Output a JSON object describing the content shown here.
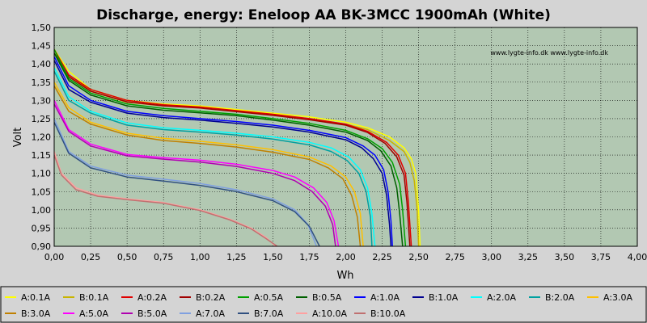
{
  "chart_data": {
    "type": "line",
    "title": "Discharge, energy: Eneloop AA BK-3MCC 1900mAh (White)",
    "xlabel": "Wh",
    "ylabel": "Volt",
    "xlim": [
      0,
      4
    ],
    "ylim": [
      0.9,
      1.5
    ],
    "xticks": [
      "0,00",
      "0,25",
      "0,50",
      "0,75",
      "1,00",
      "1,25",
      "1,50",
      "1,75",
      "2,00",
      "2,25",
      "2,50",
      "2,75",
      "3,00",
      "3,25",
      "3,50",
      "3,75",
      "4,00"
    ],
    "yticks": [
      "0,90",
      "0,95",
      "1,00",
      "1,05",
      "1,10",
      "1,15",
      "1,20",
      "1,25",
      "1,30",
      "1,35",
      "1,40",
      "1,45",
      "1,50"
    ],
    "grid": true,
    "legend_position": "bottom",
    "watermark": "www.lygte-info.dk www.lygte-info.dk",
    "background_color": "#b2c8b2",
    "series": [
      {
        "name": "A:0.1A",
        "color": "#ffff00",
        "points": [
          [
            0,
            1.44
          ],
          [
            0.1,
            1.38
          ],
          [
            0.25,
            1.33
          ],
          [
            0.5,
            1.3
          ],
          [
            0.75,
            1.29
          ],
          [
            1,
            1.285
          ],
          [
            1.25,
            1.275
          ],
          [
            1.5,
            1.265
          ],
          [
            1.75,
            1.255
          ],
          [
            2,
            1.24
          ],
          [
            2.15,
            1.225
          ],
          [
            2.3,
            1.2
          ],
          [
            2.4,
            1.17
          ],
          [
            2.45,
            1.14
          ],
          [
            2.48,
            1.1
          ],
          [
            2.5,
            1.0
          ],
          [
            2.51,
            0.9
          ]
        ]
      },
      {
        "name": "B:0.1A",
        "color": "#c8b400",
        "points": [
          [
            0,
            1.43
          ],
          [
            0.1,
            1.37
          ],
          [
            0.25,
            1.325
          ],
          [
            0.5,
            1.295
          ],
          [
            0.75,
            1.285
          ],
          [
            1,
            1.28
          ],
          [
            1.25,
            1.27
          ],
          [
            1.5,
            1.26
          ],
          [
            1.75,
            1.25
          ],
          [
            2,
            1.235
          ],
          [
            2.15,
            1.22
          ],
          [
            2.3,
            1.19
          ],
          [
            2.4,
            1.16
          ],
          [
            2.44,
            1.13
          ],
          [
            2.47,
            1.08
          ],
          [
            2.49,
            1.0
          ],
          [
            2.5,
            0.9
          ]
        ]
      },
      {
        "name": "A:0.2A",
        "color": "#e00000",
        "points": [
          [
            0,
            1.44
          ],
          [
            0.1,
            1.37
          ],
          [
            0.25,
            1.33
          ],
          [
            0.5,
            1.3
          ],
          [
            0.75,
            1.288
          ],
          [
            1,
            1.282
          ],
          [
            1.25,
            1.272
          ],
          [
            1.5,
            1.262
          ],
          [
            1.75,
            1.25
          ],
          [
            2,
            1.235
          ],
          [
            2.15,
            1.215
          ],
          [
            2.28,
            1.185
          ],
          [
            2.36,
            1.15
          ],
          [
            2.41,
            1.1
          ],
          [
            2.43,
            1.02
          ],
          [
            2.45,
            0.9
          ]
        ]
      },
      {
        "name": "B:0.2A",
        "color": "#a00000",
        "points": [
          [
            0,
            1.43
          ],
          [
            0.1,
            1.365
          ],
          [
            0.25,
            1.325
          ],
          [
            0.5,
            1.296
          ],
          [
            0.75,
            1.285
          ],
          [
            1,
            1.279
          ],
          [
            1.25,
            1.269
          ],
          [
            1.5,
            1.259
          ],
          [
            1.75,
            1.247
          ],
          [
            2,
            1.232
          ],
          [
            2.15,
            1.212
          ],
          [
            2.27,
            1.182
          ],
          [
            2.35,
            1.145
          ],
          [
            2.4,
            1.095
          ],
          [
            2.42,
            1.02
          ],
          [
            2.44,
            0.9
          ]
        ]
      },
      {
        "name": "A:0.5A",
        "color": "#00a000",
        "points": [
          [
            0,
            1.44
          ],
          [
            0.1,
            1.36
          ],
          [
            0.25,
            1.32
          ],
          [
            0.5,
            1.29
          ],
          [
            0.75,
            1.278
          ],
          [
            1,
            1.27
          ],
          [
            1.25,
            1.262
          ],
          [
            1.5,
            1.25
          ],
          [
            1.75,
            1.237
          ],
          [
            2,
            1.218
          ],
          [
            2.15,
            1.195
          ],
          [
            2.25,
            1.168
          ],
          [
            2.32,
            1.13
          ],
          [
            2.37,
            1.07
          ],
          [
            2.39,
            1.0
          ],
          [
            2.41,
            0.9
          ]
        ]
      },
      {
        "name": "B:0.5A",
        "color": "#006000",
        "points": [
          [
            0,
            1.43
          ],
          [
            0.1,
            1.355
          ],
          [
            0.25,
            1.315
          ],
          [
            0.5,
            1.285
          ],
          [
            0.75,
            1.273
          ],
          [
            1,
            1.266
          ],
          [
            1.25,
            1.258
          ],
          [
            1.5,
            1.246
          ],
          [
            1.75,
            1.232
          ],
          [
            2,
            1.213
          ],
          [
            2.15,
            1.19
          ],
          [
            2.24,
            1.162
          ],
          [
            2.31,
            1.12
          ],
          [
            2.35,
            1.06
          ],
          [
            2.37,
            0.99
          ],
          [
            2.39,
            0.9
          ]
        ]
      },
      {
        "name": "A:1.0A",
        "color": "#0000ff",
        "points": [
          [
            0,
            1.42
          ],
          [
            0.1,
            1.34
          ],
          [
            0.25,
            1.3
          ],
          [
            0.5,
            1.27
          ],
          [
            0.75,
            1.258
          ],
          [
            1,
            1.25
          ],
          [
            1.25,
            1.242
          ],
          [
            1.5,
            1.232
          ],
          [
            1.75,
            1.218
          ],
          [
            2,
            1.198
          ],
          [
            2.12,
            1.175
          ],
          [
            2.2,
            1.15
          ],
          [
            2.26,
            1.11
          ],
          [
            2.29,
            1.05
          ],
          [
            2.31,
            0.97
          ],
          [
            2.32,
            0.9
          ]
        ]
      },
      {
        "name": "B:1.0A",
        "color": "#000090",
        "points": [
          [
            0,
            1.41
          ],
          [
            0.1,
            1.33
          ],
          [
            0.25,
            1.295
          ],
          [
            0.5,
            1.265
          ],
          [
            0.75,
            1.253
          ],
          [
            1,
            1.246
          ],
          [
            1.25,
            1.237
          ],
          [
            1.5,
            1.227
          ],
          [
            1.75,
            1.213
          ],
          [
            2,
            1.192
          ],
          [
            2.11,
            1.17
          ],
          [
            2.19,
            1.14
          ],
          [
            2.25,
            1.1
          ],
          [
            2.28,
            1.04
          ],
          [
            2.3,
            0.96
          ],
          [
            2.31,
            0.9
          ]
        ]
      },
      {
        "name": "A:2.0A",
        "color": "#00ffff",
        "points": [
          [
            0,
            1.39
          ],
          [
            0.1,
            1.31
          ],
          [
            0.25,
            1.27
          ],
          [
            0.5,
            1.238
          ],
          [
            0.75,
            1.225
          ],
          [
            1,
            1.218
          ],
          [
            1.25,
            1.21
          ],
          [
            1.5,
            1.2
          ],
          [
            1.75,
            1.185
          ],
          [
            1.9,
            1.17
          ],
          [
            2.02,
            1.145
          ],
          [
            2.1,
            1.11
          ],
          [
            2.15,
            1.06
          ],
          [
            2.18,
            0.99
          ],
          [
            2.2,
            0.9
          ]
        ]
      },
      {
        "name": "B:2.0A",
        "color": "#00a0a0",
        "points": [
          [
            0,
            1.38
          ],
          [
            0.1,
            1.3
          ],
          [
            0.25,
            1.265
          ],
          [
            0.5,
            1.232
          ],
          [
            0.75,
            1.22
          ],
          [
            1,
            1.213
          ],
          [
            1.25,
            1.205
          ],
          [
            1.5,
            1.194
          ],
          [
            1.75,
            1.178
          ],
          [
            1.9,
            1.16
          ],
          [
            2.01,
            1.135
          ],
          [
            2.09,
            1.1
          ],
          [
            2.14,
            1.05
          ],
          [
            2.17,
            0.98
          ],
          [
            2.18,
            0.9
          ]
        ]
      },
      {
        "name": "A:3.0A",
        "color": "#ffc000",
        "points": [
          [
            0,
            1.35
          ],
          [
            0.1,
            1.28
          ],
          [
            0.25,
            1.24
          ],
          [
            0.5,
            1.21
          ],
          [
            0.75,
            1.196
          ],
          [
            1,
            1.188
          ],
          [
            1.25,
            1.178
          ],
          [
            1.5,
            1.165
          ],
          [
            1.75,
            1.145
          ],
          [
            1.9,
            1.12
          ],
          [
            2.0,
            1.09
          ],
          [
            2.06,
            1.05
          ],
          [
            2.1,
            0.99
          ],
          [
            2.12,
            0.9
          ]
        ]
      },
      {
        "name": "B:3.0A",
        "color": "#c08000",
        "points": [
          [
            0,
            1.34
          ],
          [
            0.1,
            1.27
          ],
          [
            0.25,
            1.235
          ],
          [
            0.5,
            1.205
          ],
          [
            0.75,
            1.19
          ],
          [
            1,
            1.182
          ],
          [
            1.25,
            1.172
          ],
          [
            1.5,
            1.158
          ],
          [
            1.75,
            1.138
          ],
          [
            1.88,
            1.115
          ],
          [
            1.98,
            1.085
          ],
          [
            2.04,
            1.04
          ],
          [
            2.08,
            0.98
          ],
          [
            2.1,
            0.9
          ]
        ]
      },
      {
        "name": "A:5.0A",
        "color": "#ff00ff",
        "points": [
          [
            0,
            1.3
          ],
          [
            0.1,
            1.22
          ],
          [
            0.25,
            1.18
          ],
          [
            0.5,
            1.152
          ],
          [
            0.75,
            1.143
          ],
          [
            1,
            1.136
          ],
          [
            1.25,
            1.125
          ],
          [
            1.5,
            1.108
          ],
          [
            1.65,
            1.09
          ],
          [
            1.78,
            1.06
          ],
          [
            1.87,
            1.02
          ],
          [
            1.92,
            0.97
          ],
          [
            1.95,
            0.9
          ]
        ]
      },
      {
        "name": "B:5.0A",
        "color": "#b000b0",
        "points": [
          [
            0,
            1.29
          ],
          [
            0.1,
            1.215
          ],
          [
            0.25,
            1.175
          ],
          [
            0.5,
            1.148
          ],
          [
            0.75,
            1.139
          ],
          [
            1,
            1.131
          ],
          [
            1.25,
            1.119
          ],
          [
            1.5,
            1.1
          ],
          [
            1.65,
            1.08
          ],
          [
            1.77,
            1.05
          ],
          [
            1.86,
            1.01
          ],
          [
            1.91,
            0.96
          ],
          [
            1.93,
            0.9
          ]
        ]
      },
      {
        "name": "A:7.0A",
        "color": "#80a0e0",
        "points": [
          [
            0,
            1.25
          ],
          [
            0.1,
            1.16
          ],
          [
            0.25,
            1.12
          ],
          [
            0.5,
            1.095
          ],
          [
            0.75,
            1.084
          ],
          [
            1,
            1.072
          ],
          [
            1.25,
            1.055
          ],
          [
            1.5,
            1.03
          ],
          [
            1.65,
            1.0
          ],
          [
            1.74,
            0.96
          ],
          [
            1.8,
            0.9
          ]
        ]
      },
      {
        "name": "B:7.0A",
        "color": "#305080",
        "points": [
          [
            0,
            1.24
          ],
          [
            0.1,
            1.155
          ],
          [
            0.25,
            1.115
          ],
          [
            0.5,
            1.09
          ],
          [
            0.75,
            1.079
          ],
          [
            1,
            1.067
          ],
          [
            1.25,
            1.05
          ],
          [
            1.5,
            1.025
          ],
          [
            1.65,
            0.995
          ],
          [
            1.75,
            0.955
          ],
          [
            1.82,
            0.9
          ]
        ]
      },
      {
        "name": "A:10.0A",
        "color": "#ffa0a0",
        "points": [
          [
            0,
            1.16
          ],
          [
            0.05,
            1.1
          ],
          [
            0.15,
            1.06
          ],
          [
            0.3,
            1.04
          ],
          [
            0.5,
            1.03
          ],
          [
            0.75,
            1.02
          ],
          [
            1,
            1.0
          ],
          [
            1.2,
            0.975
          ],
          [
            1.35,
            0.95
          ],
          [
            1.45,
            0.925
          ],
          [
            1.52,
            0.9
          ]
        ]
      },
      {
        "name": "B:10.0A",
        "color": "#c07070",
        "points": [
          [
            0,
            1.15
          ],
          [
            0.05,
            1.095
          ],
          [
            0.15,
            1.055
          ],
          [
            0.3,
            1.037
          ],
          [
            0.5,
            1.028
          ],
          [
            0.75,
            1.018
          ],
          [
            1,
            0.998
          ],
          [
            1.2,
            0.973
          ],
          [
            1.35,
            0.948
          ],
          [
            1.45,
            0.922
          ],
          [
            1.53,
            0.9
          ]
        ]
      }
    ]
  }
}
